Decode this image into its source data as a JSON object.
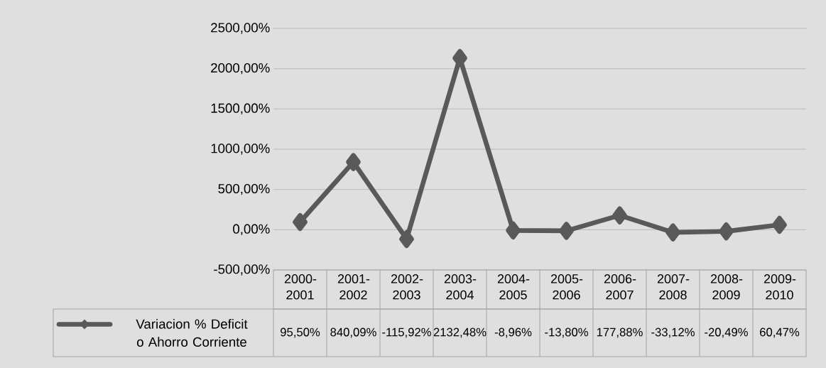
{
  "chart_data": {
    "type": "line",
    "categories": [
      "2000-2001",
      "2001-2002",
      "2002-2003",
      "2003-2004",
      "2004-2005",
      "2005-2006",
      "2006-2007",
      "2007-2008",
      "2008-2009",
      "2009-2010"
    ],
    "series": [
      {
        "name": "Variacion % Deficit o Ahorro Corriente",
        "color": "#595959",
        "values": [
          95.5,
          840.09,
          -115.92,
          2132.48,
          -8.96,
          -13.8,
          177.88,
          -33.12,
          -20.49,
          60.47
        ],
        "value_labels": [
          "95,50%",
          "840,09%",
          "-115,92%",
          "2132,48%",
          "-8,96%",
          "-13,80%",
          "177,88%",
          "-33,12%",
          "-20,49%",
          "60,47%"
        ]
      }
    ],
    "ylim": [
      -500,
      2500
    ],
    "yticks": [
      {
        "value": -500,
        "label": "-500,00%"
      },
      {
        "value": 0,
        "label": "0,00%"
      },
      {
        "value": 500,
        "label": "500,00%"
      },
      {
        "value": 1000,
        "label": "1000,00%"
      },
      {
        "value": 1500,
        "label": "1500,00%"
      },
      {
        "value": 2000,
        "label": "2000,00%"
      },
      {
        "value": 2500,
        "label": "2500,00%"
      }
    ],
    "grid": "y",
    "legend": "bottom",
    "marker": "diamond",
    "line_style": "solid"
  }
}
